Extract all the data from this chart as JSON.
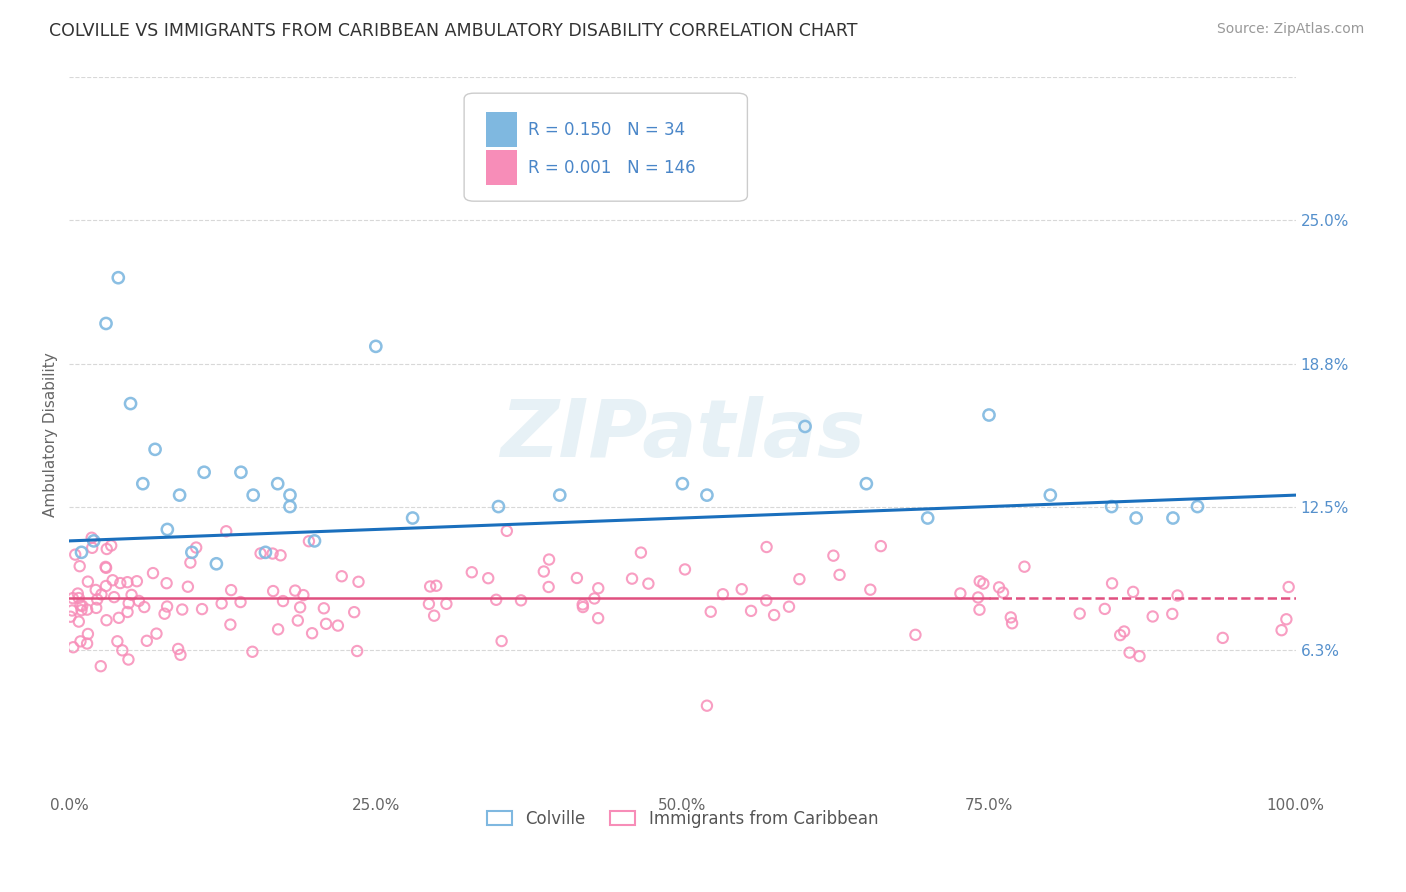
{
  "title": "COLVILLE VS IMMIGRANTS FROM CARIBBEAN AMBULATORY DISABILITY CORRELATION CHART",
  "source": "Source: ZipAtlas.com",
  "ylabel": "Ambulatory Disability",
  "xlim": [
    0,
    100
  ],
  "ylim": [
    0,
    31.25
  ],
  "yticks": [
    6.25,
    12.5,
    18.75,
    25.0
  ],
  "ytick_labels": [
    "6.3%",
    "12.5%",
    "18.8%",
    "25.0%"
  ],
  "xticks": [
    0,
    25,
    50,
    75,
    100
  ],
  "xtick_labels": [
    "0.0%",
    "25.0%",
    "50.0%",
    "75.0%",
    "100.0%"
  ],
  "legend_label1": "Colville",
  "legend_label2": "Immigrants from Caribbean",
  "R1": 0.15,
  "N1": 34,
  "R2": 0.001,
  "N2": 146,
  "color1": "#7fb8e0",
  "color2": "#f78db8",
  "trendline1_color": "#1a6fbd",
  "trendline2_color": "#e05080",
  "watermark": "ZIPatlas",
  "background_color": "#ffffff",
  "grid_color": "#d8d8d8",
  "trendline1_y0": 11.0,
  "trendline1_y1": 13.0,
  "trendline2_y": 8.5
}
